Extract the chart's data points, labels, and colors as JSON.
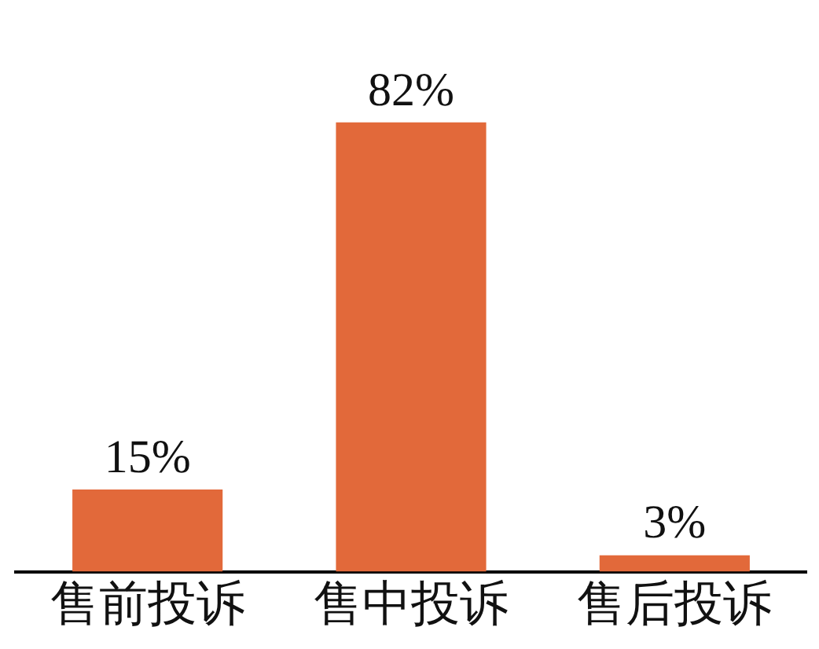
{
  "chart_data": {
    "type": "bar",
    "categories": [
      "售前投诉",
      "售中投诉",
      "售后投诉"
    ],
    "values": [
      15,
      82,
      3
    ],
    "value_labels": [
      "15%",
      "82%",
      "3%"
    ],
    "color": "#e2693a",
    "grid": false,
    "legend": false,
    "tick_labels": "x"
  }
}
